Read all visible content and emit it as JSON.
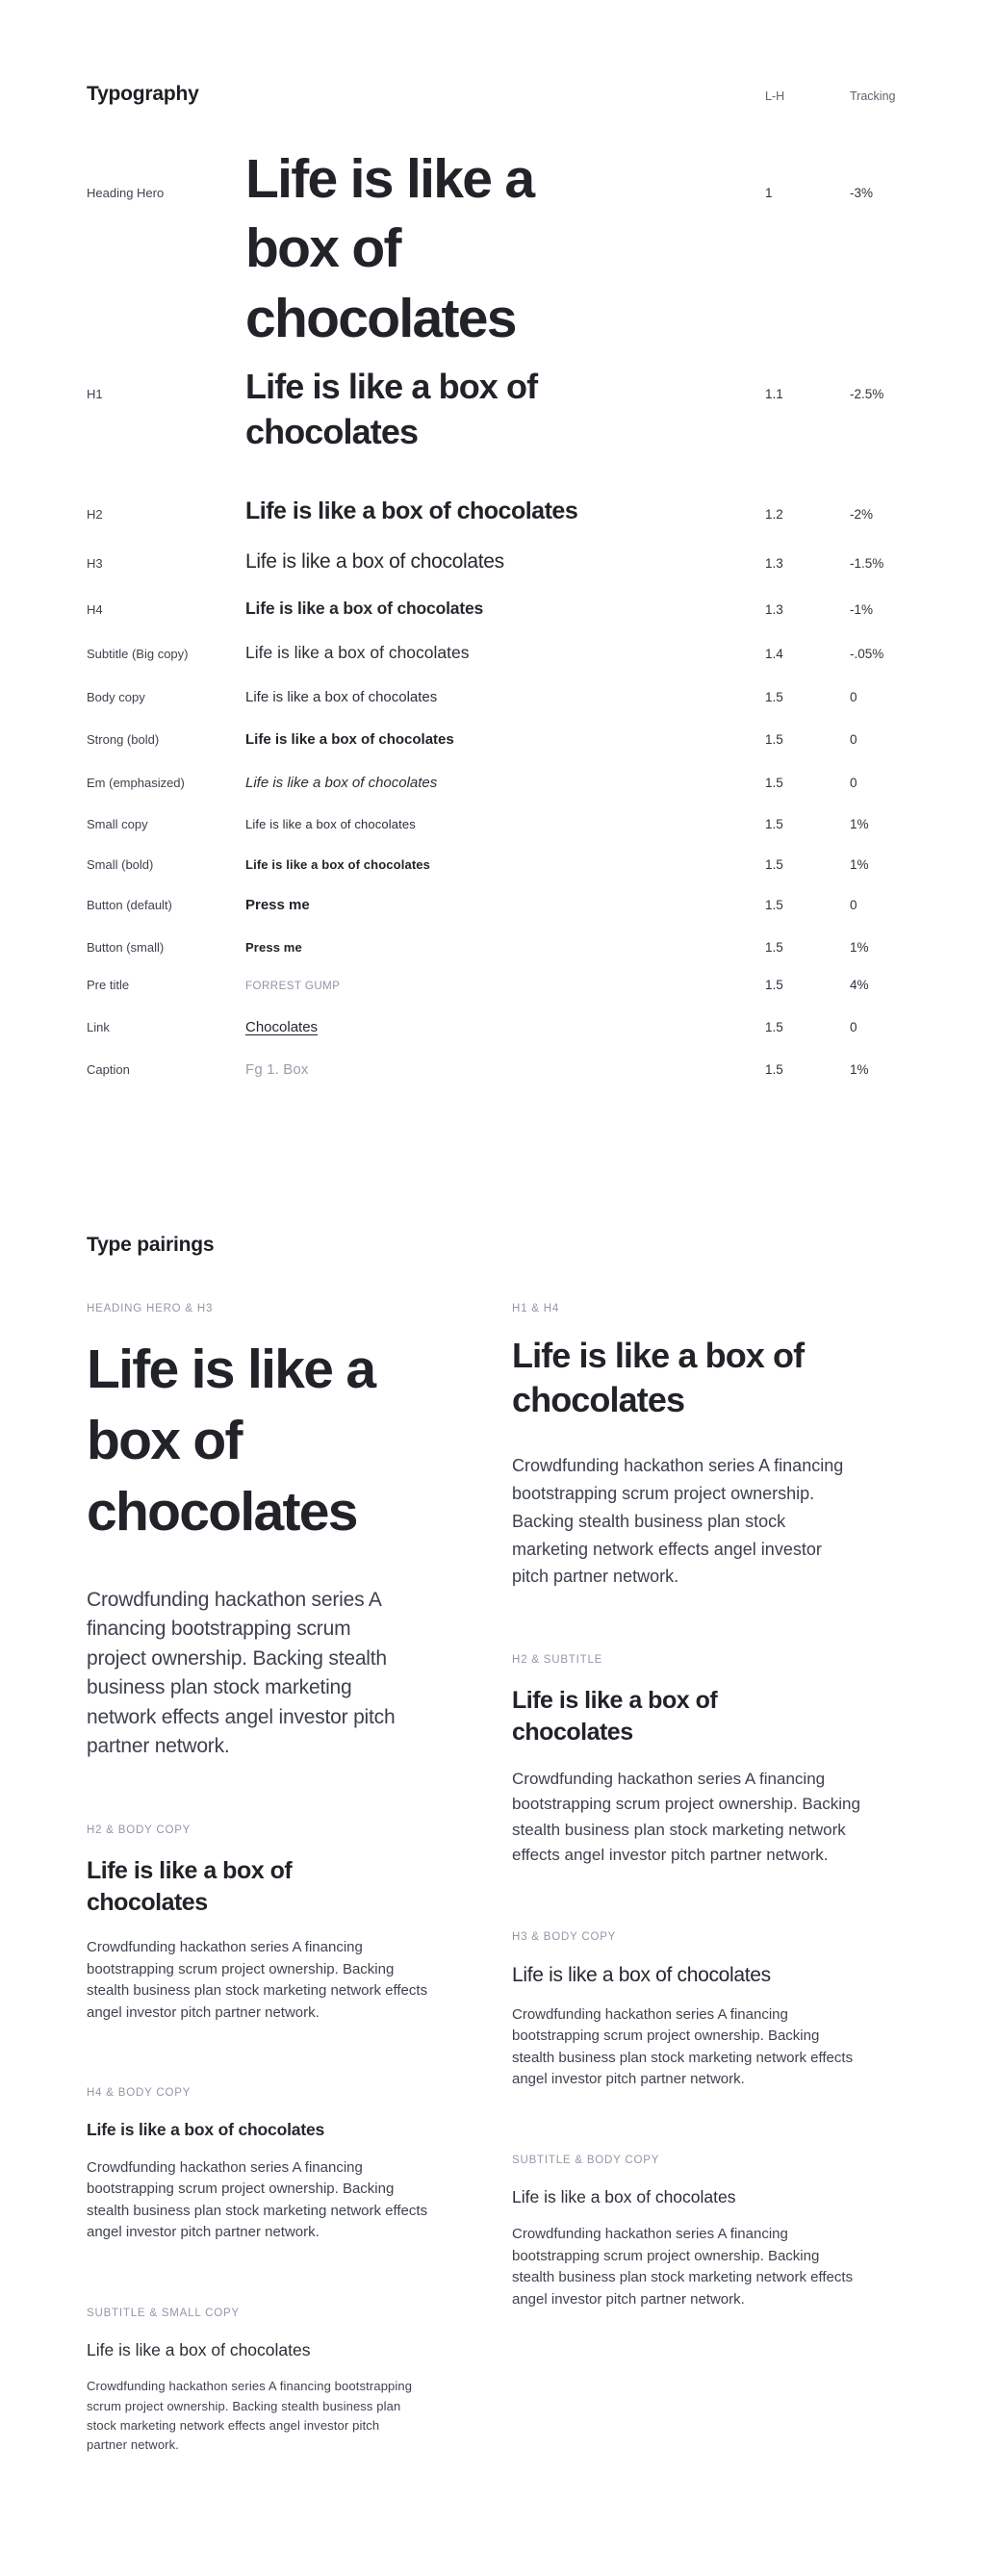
{
  "colors": {
    "background": "#ffffff",
    "heading_text": "#212329",
    "body_text": "#3e434e",
    "table_label": "#3f434e",
    "column_header": "#5f636e",
    "value_text": "#2f323a",
    "muted_label": "#9397a8",
    "caption_text": "#9a9ead"
  },
  "typography_section": {
    "title": "Typography",
    "headers": {
      "lh": "L-H",
      "tracking": "Tracking"
    },
    "rows": [
      {
        "label": "Heading Hero",
        "sample": "Life is like a box of chocolates",
        "lh": "1",
        "tracking": "-3%"
      },
      {
        "label": "H1",
        "sample": "Life is like a box of chocolates",
        "lh": "1.1",
        "tracking": "-2.5%"
      },
      {
        "label": "H2",
        "sample": "Life is like a box of chocolates",
        "lh": "1.2",
        "tracking": "-2%"
      },
      {
        "label": "H3",
        "sample": "Life is like a box of chocolates",
        "lh": "1.3",
        "tracking": "-1.5%"
      },
      {
        "label": "H4",
        "sample": "Life is like a box of chocolates",
        "lh": "1.3",
        "tracking": "-1%"
      },
      {
        "label": "Subtitle (Big copy)",
        "sample": "Life is like a box of chocolates",
        "lh": "1.4",
        "tracking": "-.05%"
      },
      {
        "label": "Body copy",
        "sample": "Life is like a box of chocolates",
        "lh": "1.5",
        "tracking": "0"
      },
      {
        "label": "Strong (bold)",
        "sample": "Life is like a box of chocolates",
        "lh": "1.5",
        "tracking": "0"
      },
      {
        "label": "Em (emphasized)",
        "sample": "Life is like a box of chocolates",
        "lh": "1.5",
        "tracking": "0"
      },
      {
        "label": "Small copy",
        "sample": "Life is like a box of chocolates",
        "lh": "1.5",
        "tracking": "1%"
      },
      {
        "label": "Small (bold)",
        "sample": "Life is like a box of chocolates",
        "lh": "1.5",
        "tracking": "1%"
      },
      {
        "label": "Button (default)",
        "sample": "Press me",
        "lh": "1.5",
        "tracking": "0"
      },
      {
        "label": "Button (small)",
        "sample": "Press me",
        "lh": "1.5",
        "tracking": "1%"
      },
      {
        "label": "Pre title",
        "sample": "FORREST GUMP",
        "lh": "1.5",
        "tracking": "4%"
      },
      {
        "label": "Link",
        "sample": "Chocolates",
        "lh": "1.5",
        "tracking": "0"
      },
      {
        "label": "Caption",
        "sample": "Fg 1. Box",
        "lh": "1.5",
        "tracking": "1%"
      }
    ]
  },
  "pairings_section": {
    "title": "Type pairings",
    "left": [
      {
        "label": "HEADING HERO & H3",
        "heading": "Life is like a box of chocolates",
        "body": "Crowdfunding hackathon series A financing bootstrapping scrum project ownership. Backing stealth business plan stock marketing network effects angel investor pitch partner network."
      },
      {
        "label": "H2 & BODY COPY",
        "heading": "Life is like a box of chocolates",
        "body": "Crowdfunding hackathon series A financing bootstrapping scrum project ownership. Backing stealth business plan stock marketing network effects angel investor pitch partner network."
      },
      {
        "label": "H4 & BODY COPY",
        "heading": "Life is like a box of chocolates",
        "body": "Crowdfunding hackathon series A financing bootstrapping scrum project ownership. Backing stealth business plan stock marketing network effects angel investor pitch partner network."
      },
      {
        "label": "SUBTITLE & SMALL COPY",
        "heading": "Life is like a box of chocolates",
        "body": "Crowdfunding hackathon series A financing bootstrapping scrum project ownership. Backing stealth business plan stock marketing network effects angel investor pitch partner network."
      }
    ],
    "right": [
      {
        "label": "H1 & H4",
        "heading": "Life is like a box of chocolates",
        "body": "Crowdfunding hackathon series A financing bootstrapping scrum project ownership. Backing stealth business plan stock marketing network effects angel investor pitch partner network."
      },
      {
        "label": "H2 & SUBTITLE",
        "heading": "Life is like a box of chocolates",
        "body": "Crowdfunding hackathon series A financing bootstrapping scrum project ownership. Backing stealth business plan stock marketing network effects angel investor pitch partner network."
      },
      {
        "label": "H3 & BODY COPY",
        "heading": "Life is like a box of chocolates",
        "body": "Crowdfunding hackathon series A financing bootstrapping scrum project ownership. Backing stealth business plan stock marketing network effects angel investor pitch partner network."
      },
      {
        "label": "SUBTITLE & BODY COPY",
        "heading": "Life is like a box of chocolates",
        "body": "Crowdfunding hackathon series A financing bootstrapping scrum project ownership. Backing stealth business plan stock marketing network effects angel investor pitch partner network."
      }
    ]
  }
}
